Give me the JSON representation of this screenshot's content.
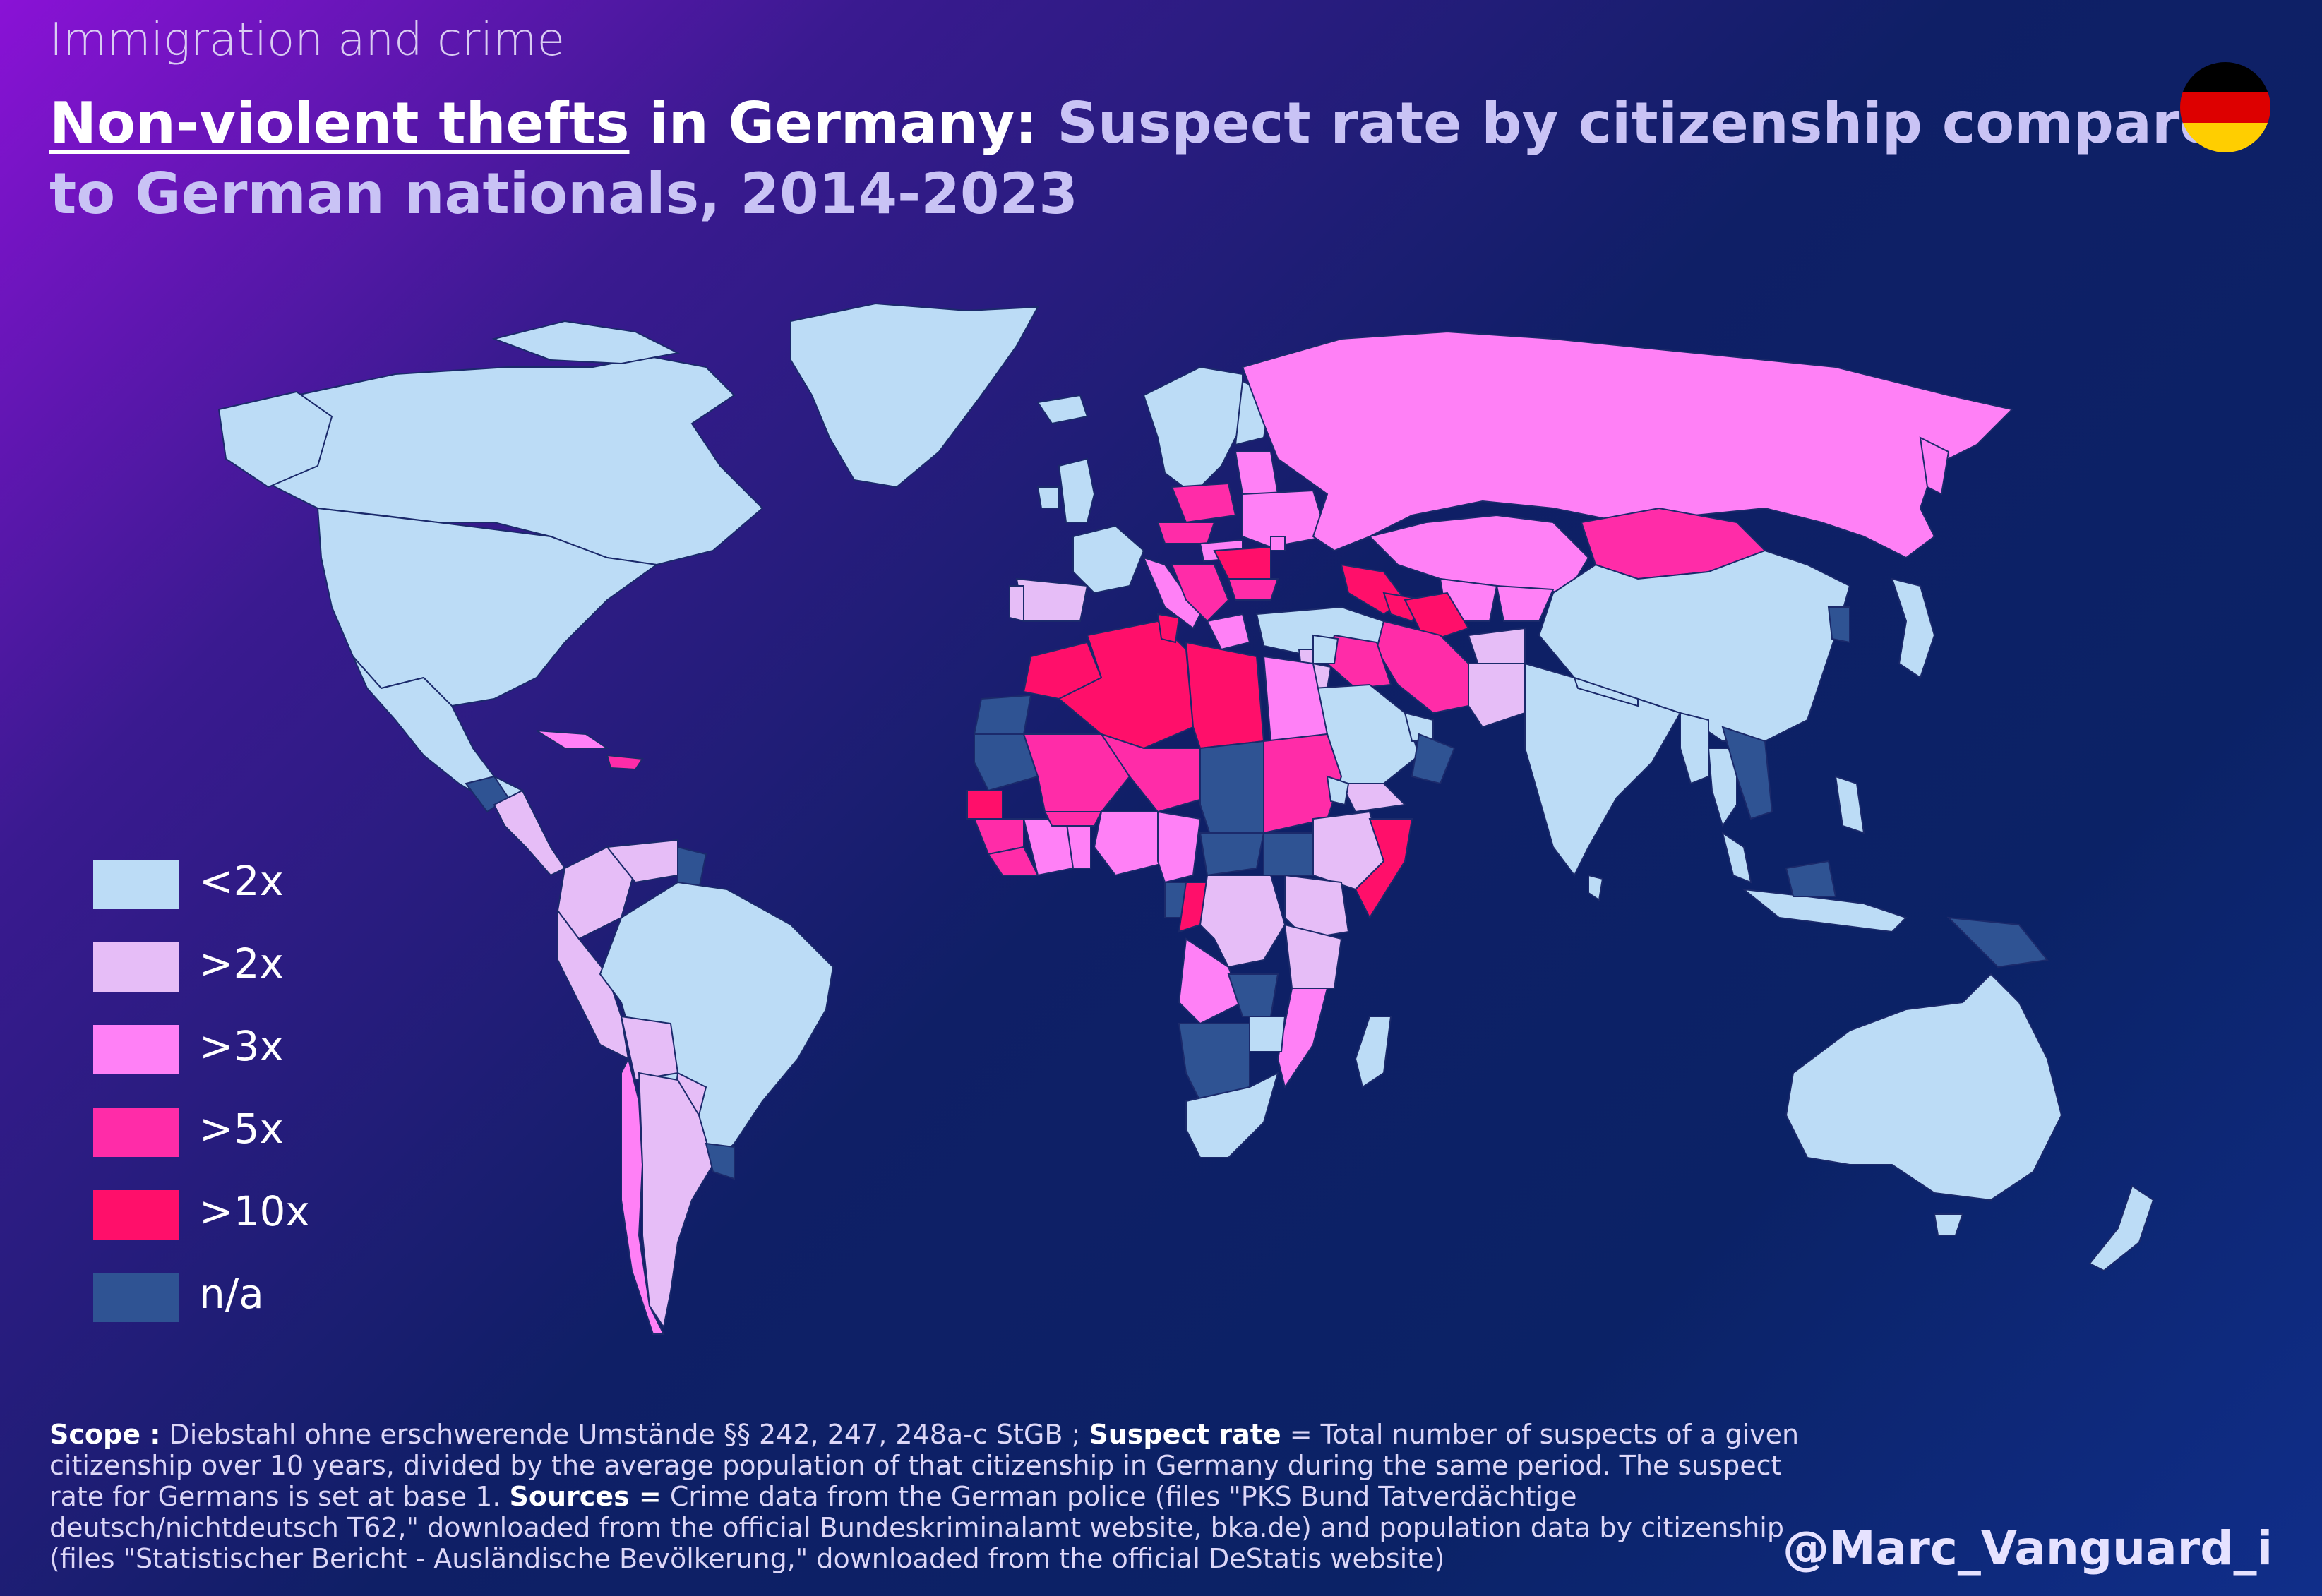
{
  "header": {
    "supertitle": "Immigration and crime",
    "title_em": "Non-violent thefts",
    "title_white": " in Germany:",
    "title_rest": " Suspect rate by citizenship compared to German nationals, 2014-2023"
  },
  "flag": {
    "icon": "germany-flag-icon",
    "colors": [
      "#000000",
      "#dd0000",
      "#ffce00"
    ]
  },
  "legend": {
    "items": [
      {
        "label": "<2x",
        "color": "#bcdcf6"
      },
      {
        "label": ">2x",
        "color": "#e6bdf7"
      },
      {
        "label": ">3x",
        "color": "#ff80f6"
      },
      {
        "label": ">5x",
        "color": "#ff2ca8"
      },
      {
        "label": ">10x",
        "color": "#ff0f6a"
      },
      {
        "label": "n/a",
        "color": "#2f5393"
      }
    ]
  },
  "notes": {
    "scope_label": "Scope :",
    "scope_text": " Diebstahl ohne erschwerende Umstände §§ 242, 247, 248a-c StGB ; ",
    "rate_label": "Suspect rate",
    "rate_text": " = Total number of suspects of a given citizenship over 10 years, divided by the average population of that citizenship in Germany during the same period. The suspect rate for Germans is set at base 1. ",
    "sources_label": "Sources =",
    "sources_text": " Crime data from the German police (files \"PKS Bund Tatverdächtige deutsch/nichtdeutsch T62,\" downloaded from the official Bundeskriminalamt website, bka.de) and population data by citizenship (files \"Statistischer Bericht - Ausländische Bevölkerung,\" downloaded from the official DeStatis website)"
  },
  "credit": "@Marc_Vanguard_i",
  "colors": {
    "background_start": "#8a12d6",
    "background_end": "#102e8a",
    "ocean_text": "#c9c3f5"
  }
}
